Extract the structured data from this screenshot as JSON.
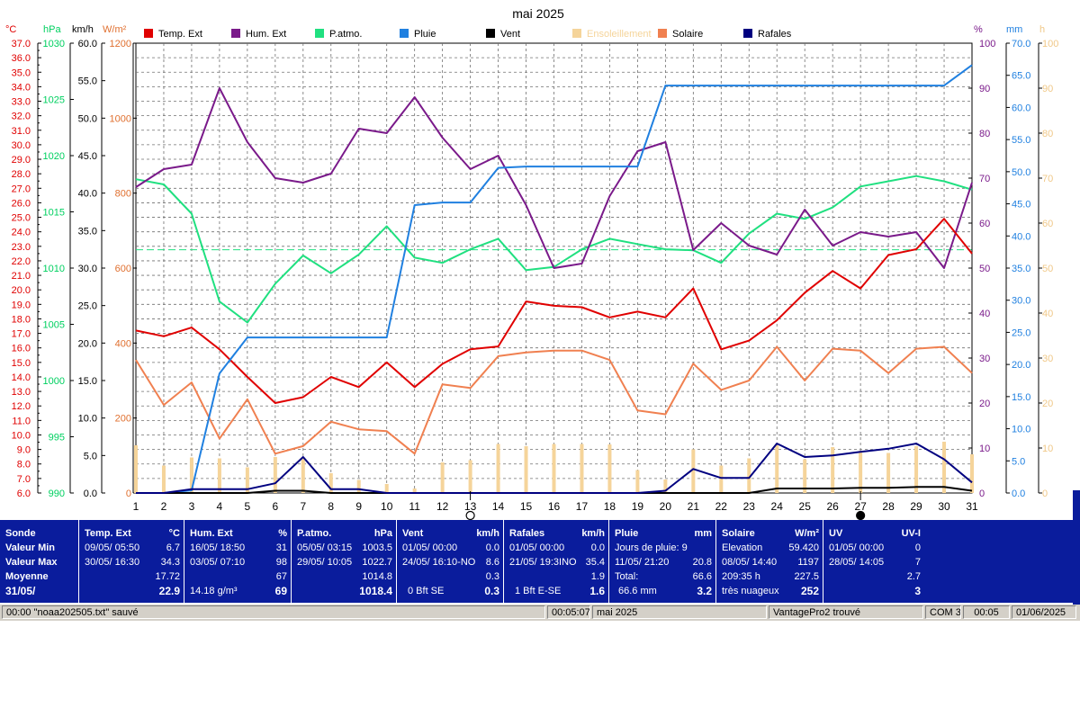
{
  "title": "mai 2025",
  "axes": {
    "temp": {
      "unit": "°C",
      "color": "#e00000",
      "min": 6.0,
      "max": 37.0,
      "step": 0.5,
      "label_step": 1.0
    },
    "pressure": {
      "unit": "hPa",
      "color": "#00d060",
      "ticks": [
        "990",
        "995",
        "1000",
        "1005",
        "1010",
        "1015",
        "1020",
        "1025",
        "1030"
      ]
    },
    "wind": {
      "unit": "km/h",
      "color": "#000000",
      "ticks": [
        "0.0",
        "5.0",
        "10.0",
        "15.0",
        "20.0",
        "25.0",
        "30.0",
        "35.0",
        "40.0",
        "45.0",
        "50.0",
        "55.0",
        "60.0"
      ]
    },
    "solar": {
      "unit": "W/m²",
      "color": "#e07030",
      "ticks": [
        "0",
        "200",
        "400",
        "600",
        "800",
        "1000",
        "1200"
      ]
    },
    "humidity": {
      "unit": "%",
      "color": "#7a1a8a",
      "ticks": [
        "0",
        "10",
        "20",
        "30",
        "40",
        "50",
        "60",
        "70",
        "80",
        "90",
        "100"
      ]
    },
    "rain": {
      "unit": "mm",
      "color": "#2080e0",
      "ticks": [
        "0.0",
        "5.0",
        "10.0",
        "15.0",
        "20.0",
        "25.0",
        "30.0",
        "35.0",
        "40.0",
        "45.0",
        "50.0",
        "55.0",
        "60.0",
        "65.0",
        "70.0"
      ]
    },
    "sun": {
      "unit": "h",
      "color": "#f0c888",
      "ticks": [
        "0",
        "10",
        "20",
        "30",
        "40",
        "50",
        "60",
        "70",
        "80",
        "90",
        "100"
      ]
    }
  },
  "legend": [
    {
      "label": "Temp. Ext",
      "color": "#e00000"
    },
    {
      "label": "Hum. Ext",
      "color": "#7a1a8a"
    },
    {
      "label": "P.atmo.",
      "color": "#20e080"
    },
    {
      "label": "Pluie",
      "color": "#2080e0"
    },
    {
      "label": "Vent",
      "color": "#000000"
    },
    {
      "label": "Ensoleillement",
      "color": "#f5d49a"
    },
    {
      "label": "Solaire",
      "color": "#f08050"
    },
    {
      "label": "Rafales",
      "color": "#000080"
    }
  ],
  "chart_data": {
    "type": "line",
    "title": "mai 2025",
    "x": [
      1,
      2,
      3,
      4,
      5,
      6,
      7,
      8,
      9,
      10,
      11,
      12,
      13,
      14,
      15,
      16,
      17,
      18,
      19,
      20,
      21,
      22,
      23,
      24,
      25,
      26,
      27,
      28,
      29,
      30,
      31
    ],
    "series": [
      {
        "name": "Temp. Ext",
        "unit": "°C",
        "color": "#e00000",
        "values": [
          17.2,
          16.8,
          17.4,
          15.9,
          14.0,
          12.2,
          12.6,
          14.0,
          13.3,
          15.0,
          13.3,
          14.9,
          15.9,
          16.1,
          19.2,
          18.9,
          18.8,
          18.1,
          18.5,
          18.1,
          20.1,
          15.9,
          16.5,
          17.9,
          19.8,
          21.3,
          20.1,
          22.4,
          22.8,
          24.9,
          22.5
        ]
      },
      {
        "name": "Hum. Ext",
        "unit": "%",
        "color": "#7a1a8a",
        "values": [
          68,
          72,
          73,
          90,
          78,
          70,
          69,
          71,
          81,
          80,
          88,
          79,
          72,
          75,
          64,
          50,
          51,
          66,
          76,
          78,
          54,
          60,
          55,
          53,
          63,
          55,
          58,
          57,
          58,
          50,
          69
        ]
      },
      {
        "name": "P.atmo.",
        "unit": "hPa",
        "color": "#20e080",
        "values": [
          1020.0,
          1019.5,
          1016.7,
          1008.3,
          1006.3,
          1010.0,
          1012.7,
          1011.0,
          1012.8,
          1015.5,
          1012.5,
          1012.0,
          1013.3,
          1014.3,
          1011.3,
          1011.6,
          1013.3,
          1014.3,
          1013.8,
          1013.3,
          1013.2,
          1012.0,
          1014.8,
          1016.7,
          1016.2,
          1017.3,
          1019.3,
          1019.8,
          1020.3,
          1019.8,
          1019.0
        ]
      },
      {
        "name": "Pluie",
        "unit": "mm",
        "color": "#2080e0",
        "values": [
          0.0,
          0.0,
          0.4,
          18.6,
          24.2,
          24.2,
          24.2,
          24.2,
          24.2,
          24.2,
          44.8,
          45.2,
          45.2,
          50.6,
          50.8,
          50.8,
          50.8,
          50.8,
          50.8,
          63.4,
          63.4,
          63.4,
          63.4,
          63.4,
          63.4,
          63.4,
          63.4,
          63.4,
          63.4,
          63.4,
          66.6
        ]
      },
      {
        "name": "Vent",
        "unit": "km/h",
        "color": "#000000",
        "values": [
          0.0,
          0.0,
          0.0,
          0.0,
          0.0,
          0.3,
          0.3,
          0.0,
          0.0,
          0.0,
          0.0,
          0.0,
          0.0,
          0.0,
          0.0,
          0.0,
          0.0,
          0.0,
          0.0,
          0.0,
          0.0,
          0.0,
          0.0,
          0.6,
          0.6,
          0.6,
          0.7,
          0.7,
          0.8,
          0.8,
          0.3
        ]
      },
      {
        "name": "Rafales",
        "unit": "km/h",
        "color": "#000080",
        "values": [
          0.0,
          0.0,
          0.5,
          0.5,
          0.5,
          1.3,
          4.8,
          0.5,
          0.5,
          0.0,
          0.0,
          0.0,
          0.0,
          0.0,
          0.0,
          0.0,
          0.0,
          0.0,
          0.0,
          0.3,
          3.2,
          2.0,
          2.0,
          6.6,
          4.8,
          5.0,
          5.5,
          5.9,
          6.6,
          4.5,
          1.4
        ]
      },
      {
        "name": "Solaire",
        "unit": "W/m²",
        "color": "#f08050",
        "values": [
          355,
          235,
          295,
          145,
          250,
          105,
          125,
          190,
          170,
          165,
          105,
          290,
          280,
          365,
          375,
          380,
          380,
          355,
          220,
          210,
          345,
          275,
          300,
          390,
          300,
          385,
          380,
          320,
          385,
          390,
          320
        ]
      },
      {
        "name": "Ensoleillement",
        "unit": "h",
        "color": "#f5d49a",
        "values": [
          10.6,
          6.1,
          7.9,
          7.7,
          5.7,
          8.0,
          7.9,
          4.4,
          2.9,
          2.0,
          1.0,
          6.8,
          7.3,
          10.9,
          10.4,
          10.9,
          10.9,
          10.8,
          5.1,
          3.0,
          9.7,
          6.1,
          7.7,
          10.6,
          7.5,
          10.2,
          9.4,
          8.9,
          10.4,
          11.4,
          8.6
        ]
      }
    ],
    "reference_line": {
      "unit": "hPa",
      "value": 1013.25
    }
  },
  "moon": [
    {
      "day": 13,
      "phase": "pleine lune"
    },
    {
      "day": 27,
      "phase": "nouvelle lune"
    }
  ],
  "stats": {
    "sonde": {
      "title": "Sonde",
      "rows": [
        "Valeur Min",
        "Valeur Max",
        "Moyenne",
        "31/05/"
      ]
    },
    "temp": {
      "title": "Temp. Ext",
      "unit": "°C",
      "min_date": "09/05/  05:50",
      "min": "6.7",
      "max_date": "30/05/  16:30",
      "max": "34.3",
      "avg": "17.72",
      "today": "22.9"
    },
    "hum": {
      "title": "Hum. Ext",
      "unit": "%",
      "min_date": "16/05/  18:50",
      "min": "31",
      "max_date": "03/05/  07:10",
      "max": "98",
      "avg": "67",
      "abs": "14.18 g/m³",
      "today": "69"
    },
    "press": {
      "title": "P.atmo.",
      "unit": "hPa",
      "min_date": "05/05/  03:15",
      "min": "1003.5",
      "max_date": "29/05/  10:05",
      "max": "1022.7",
      "avg": "1014.8",
      "today": "1018.4"
    },
    "wind": {
      "title": "Vent",
      "unit": "km/h",
      "min_date": "01/05/  00:00",
      "min": "0.0",
      "max_date": "24/05/  16:10-NO",
      "max": "8.6",
      "avg": "0.3",
      "bft": "0 Bft SE",
      "today": "0.3"
    },
    "gust": {
      "title": "Rafales",
      "unit": "km/h",
      "min_date": "01/05/  00:00",
      "min": "0.0",
      "max_date": "21/05/  19:3INO",
      "max": "35.4",
      "avg": "1.9",
      "bft": "1 Bft E-SE",
      "today": "1.6"
    },
    "rain": {
      "title": "Pluie",
      "unit": "mm",
      "days": "Jours de pluie: 9",
      "max_date": "11/05/  21:20",
      "max": "20.8",
      "total_label": "Total:",
      "total": "66.6",
      "mm": "66.6 mm",
      "today": "3.2"
    },
    "solar": {
      "title": "Solaire",
      "unit": "W/m²",
      "elev_label": "Elevation",
      "elev": "59.420",
      "max_date": "08/05/  14:40",
      "max": "1197",
      "hours": "209:35 h",
      "avg": "227.5",
      "sky": "très nuageux",
      "today": "252"
    },
    "uv": {
      "title": "UV",
      "unit": "UV-I",
      "min_date": "01/05/  00:00",
      "min": "0",
      "max_date": "28/05/  14:05",
      "max": "7",
      "avg": "2.7",
      "today": "3"
    }
  },
  "status": {
    "left": "00:00  \"noaa202505.txt\"  sauvé",
    "time": "00:05:07",
    "month": "mai 2025",
    "station": "VantagePro2 trouvé",
    "port": "COM 3",
    "clock": "00:05",
    "date": "01/06/2025"
  }
}
